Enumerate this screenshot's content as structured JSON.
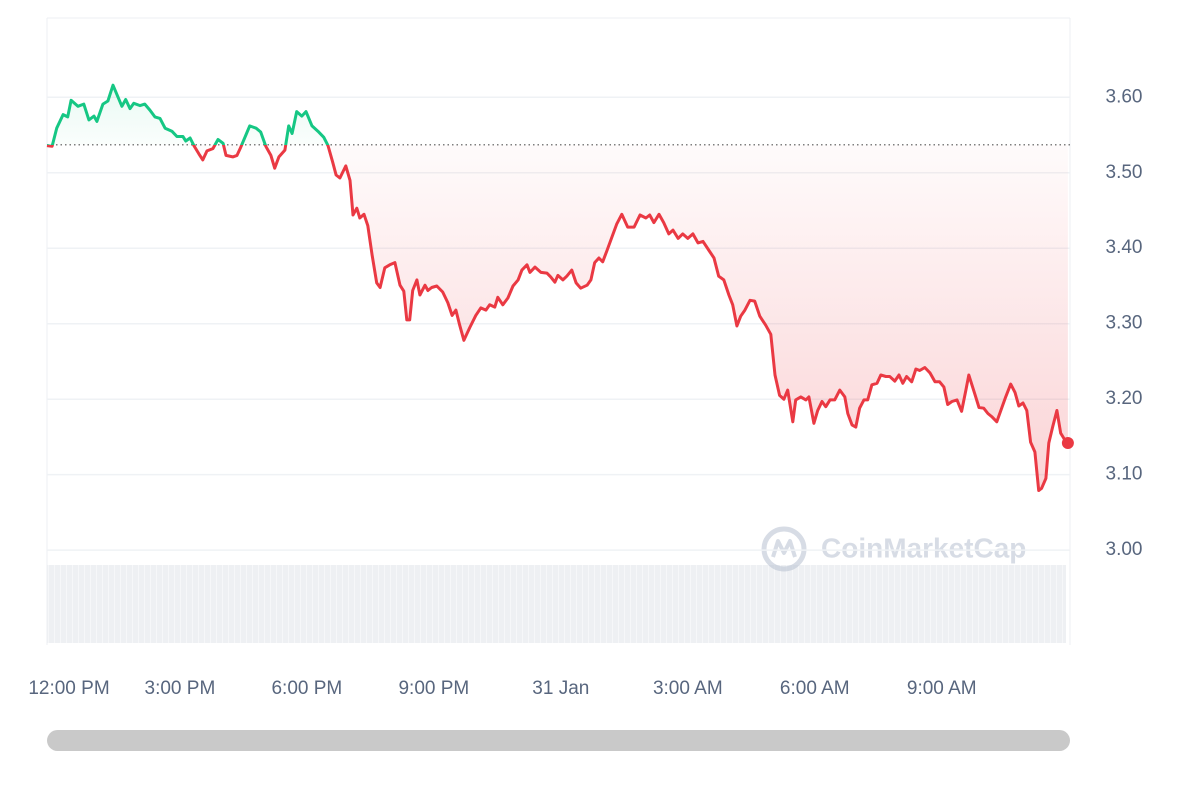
{
  "chart_data": {
    "type": "line",
    "watermark": "CoinMarketCap",
    "x": [
      -0.14,
      -0.02,
      0.09,
      0.24,
      0.35,
      0.43,
      0.59,
      0.73,
      0.85,
      0.97,
      1.04,
      1.18,
      1.3,
      1.42,
      1.54,
      1.63,
      1.72,
      1.82,
      1.91,
      2.06,
      2.17,
      2.29,
      2.41,
      2.53,
      2.65,
      2.81,
      2.93,
      3.07,
      3.14,
      3.24,
      3.33,
      3.45,
      3.54,
      3.64,
      3.78,
      3.9,
      4.02,
      4.09,
      4.25,
      4.35,
      4.44,
      4.56,
      4.65,
      4.8,
      4.91,
      5.03,
      5.15,
      5.24,
      5.34,
      5.48,
      5.57,
      5.65,
      5.76,
      5.88,
      5.98,
      6.12,
      6.26,
      6.4,
      6.5,
      6.61,
      6.69,
      6.78,
      6.92,
      7.02,
      7.09,
      7.18,
      7.25,
      7.35,
      7.44,
      7.54,
      7.65,
      7.73,
      7.84,
      7.96,
      8.08,
      8.2,
      8.29,
      8.36,
      8.43,
      8.5,
      8.6,
      8.67,
      8.79,
      8.86,
      8.95,
      9.07,
      9.21,
      9.33,
      9.43,
      9.52,
      9.61,
      9.71,
      9.85,
      9.99,
      10.11,
      10.23,
      10.32,
      10.44,
      10.51,
      10.63,
      10.75,
      10.87,
      10.99,
      11.08,
      11.2,
      11.27,
      11.39,
      11.53,
      11.67,
      11.76,
      11.86,
      11.93,
      12.05,
      12.14,
      12.26,
      12.36,
      12.47,
      12.62,
      12.71,
      12.8,
      12.9,
      12.99,
      13.09,
      13.21,
      13.32,
      13.44,
      13.58,
      13.73,
      13.87,
      14.01,
      14.1,
      14.2,
      14.32,
      14.43,
      14.55,
      14.65,
      14.77,
      14.88,
      15.0,
      15.12,
      15.24,
      15.36,
      15.5,
      15.62,
      15.73,
      15.85,
      15.97,
      16.06,
      16.16,
      16.25,
      16.35,
      16.47,
      16.58,
      16.7,
      16.84,
      16.96,
      17.06,
      17.17,
      17.27,
      17.36,
      17.48,
      17.55,
      17.67,
      17.79,
      17.86,
      17.98,
      18.07,
      18.17,
      18.26,
      18.36,
      18.47,
      18.59,
      18.71,
      18.78,
      18.88,
      18.97,
      19.06,
      19.16,
      19.25,
      19.35,
      19.47,
      19.56,
      19.68,
      19.77,
      19.89,
      19.99,
      20.08,
      20.17,
      20.29,
      20.39,
      20.48,
      20.6,
      20.72,
      20.84,
      20.95,
      21.05,
      21.14,
      21.24,
      21.36,
      21.47,
      21.57,
      21.64,
      21.78,
      21.88,
      21.99,
      22.09,
      22.18,
      22.3,
      22.42,
      22.51,
      22.63,
      22.73,
      22.82,
      22.92,
      23.01,
      23.1,
      23.2,
      23.29,
      23.36,
      23.46,
      23.53,
      23.62,
      23.72,
      23.81,
      23.91,
      23.98
    ],
    "values": [
      3.536,
      3.535,
      3.559,
      3.577,
      3.574,
      3.596,
      3.588,
      3.591,
      3.57,
      3.575,
      3.568,
      3.591,
      3.595,
      3.616,
      3.6,
      3.588,
      3.597,
      3.585,
      3.592,
      3.589,
      3.591,
      3.583,
      3.574,
      3.572,
      3.559,
      3.555,
      3.548,
      3.548,
      3.542,
      3.546,
      3.536,
      3.525,
      3.517,
      3.529,
      3.532,
      3.544,
      3.539,
      3.523,
      3.521,
      3.523,
      3.534,
      3.55,
      3.562,
      3.559,
      3.554,
      3.535,
      3.523,
      3.506,
      3.521,
      3.53,
      3.562,
      3.552,
      3.581,
      3.575,
      3.581,
      3.562,
      3.555,
      3.547,
      3.536,
      3.514,
      3.497,
      3.493,
      3.509,
      3.49,
      3.444,
      3.453,
      3.44,
      3.445,
      3.43,
      3.391,
      3.354,
      3.348,
      3.374,
      3.378,
      3.381,
      3.351,
      3.343,
      3.305,
      3.305,
      3.344,
      3.358,
      3.338,
      3.351,
      3.344,
      3.348,
      3.35,
      3.342,
      3.328,
      3.311,
      3.318,
      3.298,
      3.278,
      3.295,
      3.311,
      3.321,
      3.318,
      3.325,
      3.322,
      3.335,
      3.325,
      3.334,
      3.35,
      3.358,
      3.371,
      3.378,
      3.368,
      3.375,
      3.368,
      3.367,
      3.362,
      3.355,
      3.364,
      3.358,
      3.363,
      3.371,
      3.354,
      3.347,
      3.351,
      3.358,
      3.381,
      3.387,
      3.382,
      3.397,
      3.415,
      3.432,
      3.445,
      3.428,
      3.428,
      3.444,
      3.44,
      3.444,
      3.434,
      3.445,
      3.434,
      3.419,
      3.424,
      3.413,
      3.419,
      3.413,
      3.419,
      3.407,
      3.409,
      3.397,
      3.387,
      3.363,
      3.358,
      3.338,
      3.325,
      3.297,
      3.31,
      3.318,
      3.331,
      3.33,
      3.31,
      3.298,
      3.286,
      3.232,
      3.205,
      3.2,
      3.212,
      3.17,
      3.199,
      3.203,
      3.199,
      3.203,
      3.168,
      3.185,
      3.197,
      3.19,
      3.199,
      3.199,
      3.212,
      3.203,
      3.181,
      3.166,
      3.163,
      3.188,
      3.199,
      3.199,
      3.219,
      3.221,
      3.232,
      3.23,
      3.23,
      3.224,
      3.232,
      3.221,
      3.23,
      3.223,
      3.24,
      3.238,
      3.242,
      3.235,
      3.223,
      3.223,
      3.216,
      3.193,
      3.197,
      3.199,
      3.184,
      3.212,
      3.232,
      3.207,
      3.189,
      3.188,
      3.181,
      3.177,
      3.17,
      3.189,
      3.203,
      3.22,
      3.209,
      3.191,
      3.195,
      3.185,
      3.143,
      3.13,
      3.079,
      3.082,
      3.095,
      3.142,
      3.163,
      3.185,
      3.155,
      3.146,
      3.142
    ],
    "baseline": 3.537,
    "color_up": "#16c784",
    "color_down": "#ea3943",
    "xlim": [
      -0.14,
      24.03
    ],
    "xticks": [
      {
        "value": 0,
        "label": "12:00 PM"
      },
      {
        "value": 3,
        "label": "3:00 PM"
      },
      {
        "value": 6,
        "label": "6:00 PM"
      },
      {
        "value": 9,
        "label": "9:00 PM"
      },
      {
        "value": 12,
        "label": "31 Jan"
      },
      {
        "value": 15,
        "label": "3:00 AM"
      },
      {
        "value": 18,
        "label": "6:00 AM"
      },
      {
        "value": 21,
        "label": "9:00 AM"
      }
    ],
    "ylim": [
      2.877,
      3.705
    ],
    "yticks": [
      {
        "value": 3.0,
        "label": "3.00"
      },
      {
        "value": 3.1,
        "label": "3.10"
      },
      {
        "value": 3.2,
        "label": "3.20"
      },
      {
        "value": 3.3,
        "label": "3.30"
      },
      {
        "value": 3.4,
        "label": "3.40"
      },
      {
        "value": 3.5,
        "label": "3.50"
      },
      {
        "value": 3.6,
        "label": "3.60"
      }
    ],
    "grid": true
  }
}
